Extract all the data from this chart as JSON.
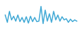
{
  "values": [
    55,
    25,
    70,
    35,
    50,
    30,
    55,
    28,
    45,
    25,
    48,
    22,
    50,
    28,
    45,
    28,
    30,
    90,
    20,
    75,
    30,
    60,
    25,
    70,
    35,
    55,
    30,
    48,
    35,
    40,
    25,
    38,
    28,
    35,
    30
  ],
  "line_color": "#3fa8d5",
  "background_color": "#ffffff",
  "linewidth": 1.1
}
